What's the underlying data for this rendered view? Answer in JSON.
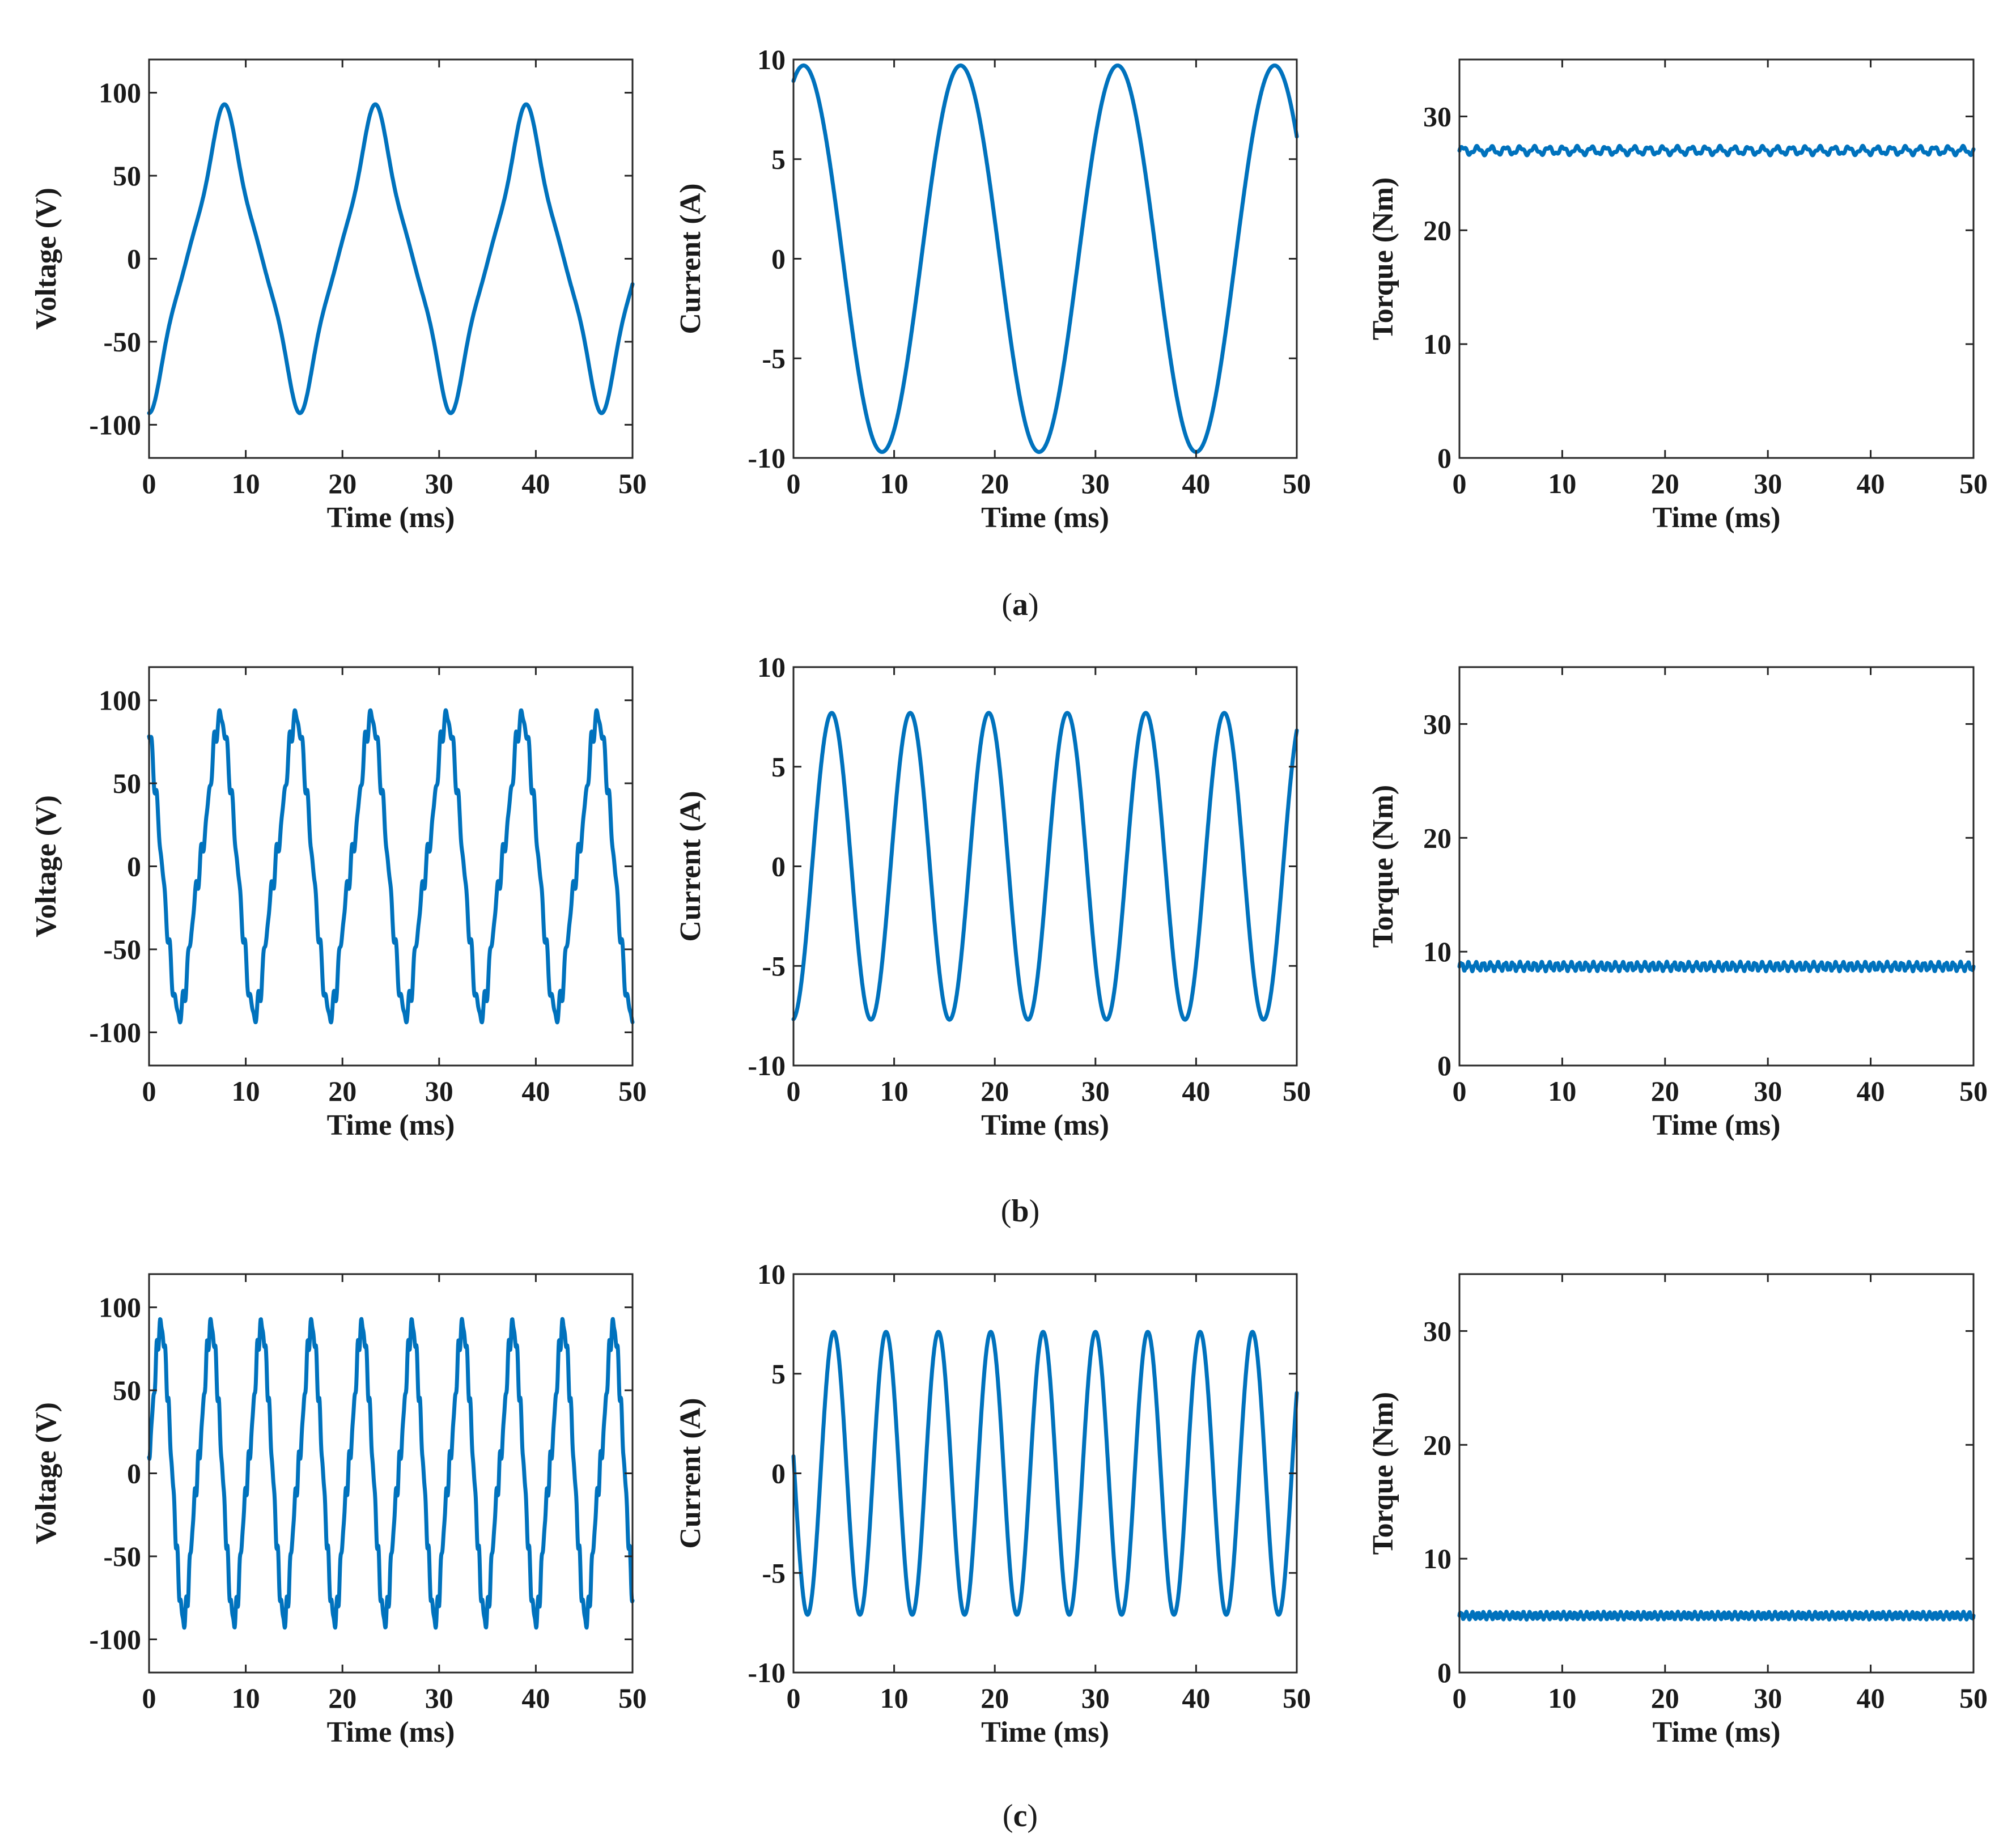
{
  "colors": {
    "series": "#0072BD",
    "axes": "#262626"
  },
  "rows": [
    {
      "caption": {
        "open": "(",
        "letter": "a",
        "close": ")"
      }
    },
    {
      "caption": {
        "open": "(",
        "letter": "b",
        "close": ")"
      }
    },
    {
      "caption": {
        "open": "(",
        "letter": "c",
        "close": ")"
      }
    }
  ],
  "chart_data": [
    {
      "panel": "a-voltage",
      "type": "line",
      "xlabel": "Time (ms)",
      "ylabel": "Voltage (V)",
      "xlim": [
        0,
        50
      ],
      "ylim": [
        -120,
        120
      ],
      "xticks": [
        0,
        10,
        20,
        30,
        40,
        50
      ],
      "yticks": [
        -100,
        -50,
        0,
        50,
        100
      ],
      "series": [
        {
          "period_ms": 15.6,
          "peak_time_ms": 7.8,
          "amplitude": 93,
          "waveform": "flat-topped periodic",
          "x": [
            0,
            50
          ]
        }
      ]
    },
    {
      "panel": "a-current",
      "type": "line",
      "xlabel": "Time (ms)",
      "ylabel": "Current (A)",
      "xlim": [
        0,
        50
      ],
      "ylim": [
        -10,
        10
      ],
      "xticks": [
        0,
        10,
        20,
        30,
        40,
        50
      ],
      "yticks": [
        -10,
        -5,
        0,
        5,
        10
      ],
      "series": [
        {
          "period_ms": 15.6,
          "peak_time_ms": 1,
          "amplitude": 9.7,
          "waveform": "sinusoidal",
          "x": [
            0,
            50
          ]
        }
      ]
    },
    {
      "panel": "a-torque",
      "type": "line",
      "xlabel": "Time (ms)",
      "ylabel": "Torque (Nm)",
      "xlim": [
        0,
        50
      ],
      "ylim": [
        0,
        35
      ],
      "xticks": [
        0,
        10,
        20,
        30,
        40,
        50
      ],
      "yticks": [
        0,
        10,
        20,
        30
      ],
      "series": [
        {
          "mean": 27,
          "ripple": 0.3,
          "ripple_cycles": 36,
          "x": [
            0,
            50
          ]
        }
      ]
    },
    {
      "panel": "b-voltage",
      "type": "line",
      "xlabel": "Time (ms)",
      "ylabel": "Voltage (V)",
      "xlim": [
        0,
        50
      ],
      "ylim": [
        -120,
        120
      ],
      "xticks": [
        0,
        10,
        20,
        30,
        40,
        50
      ],
      "yticks": [
        -100,
        -50,
        0,
        50,
        100
      ],
      "series": [
        {
          "period_ms": 7.8,
          "peak_time_ms": 7.2,
          "amplitude": 93,
          "waveform": "periodic with slot-harmonic steps",
          "x": [
            0,
            50
          ]
        }
      ]
    },
    {
      "panel": "b-current",
      "type": "line",
      "xlabel": "Time (ms)",
      "ylabel": "Current (A)",
      "xlim": [
        0,
        50
      ],
      "ylim": [
        -10,
        10
      ],
      "xticks": [
        0,
        10,
        20,
        30,
        40,
        50
      ],
      "yticks": [
        -10,
        -5,
        0,
        5,
        10
      ],
      "series": [
        {
          "period_ms": 7.8,
          "peak_time_ms": 3.8,
          "amplitude": 7.7,
          "waveform": "sinusoidal",
          "x": [
            0,
            50
          ]
        }
      ]
    },
    {
      "panel": "b-torque",
      "type": "line",
      "xlabel": "Time (ms)",
      "ylabel": "Torque (Nm)",
      "xlim": [
        0,
        50
      ],
      "ylim": [
        0,
        35
      ],
      "xticks": [
        0,
        10,
        20,
        30,
        40,
        50
      ],
      "yticks": [
        0,
        10,
        20,
        30
      ],
      "series": [
        {
          "mean": 8.7,
          "ripple": 0.3,
          "ripple_cycles": 70,
          "x": [
            0,
            50
          ]
        }
      ]
    },
    {
      "panel": "c-voltage",
      "type": "line",
      "xlabel": "Time (ms)",
      "ylabel": "Voltage (V)",
      "xlim": [
        0,
        50
      ],
      "ylim": [
        -120,
        120
      ],
      "xticks": [
        0,
        10,
        20,
        30,
        40,
        50
      ],
      "yticks": [
        -100,
        -50,
        0,
        50,
        100
      ],
      "series": [
        {
          "period_ms": 5.2,
          "peak_time_ms": 1.1,
          "amplitude": 92,
          "waveform": "periodic with slot-harmonic steps",
          "x": [
            0,
            50
          ]
        }
      ]
    },
    {
      "panel": "c-current",
      "type": "line",
      "xlabel": "Time (ms)",
      "ylabel": "Current (A)",
      "xlim": [
        0,
        50
      ],
      "ylim": [
        -10,
        10
      ],
      "xticks": [
        0,
        10,
        20,
        30,
        40,
        50
      ],
      "yticks": [
        -10,
        -5,
        0,
        5,
        10
      ],
      "series": [
        {
          "period_ms": 5.2,
          "peak_time_ms": 4.0,
          "amplitude": 7.1,
          "waveform": "sinusoidal",
          "x": [
            0,
            50
          ]
        }
      ]
    },
    {
      "panel": "c-torque",
      "type": "line",
      "xlabel": "Time (ms)",
      "ylabel": "Torque (Nm)",
      "xlim": [
        0,
        50
      ],
      "ylim": [
        0,
        35
      ],
      "xticks": [
        0,
        10,
        20,
        30,
        40,
        50
      ],
      "yticks": [
        0,
        10,
        20,
        30
      ],
      "series": [
        {
          "mean": 5.0,
          "ripple": 0.25,
          "ripple_cycles": 90,
          "x": [
            0,
            50
          ]
        }
      ]
    }
  ]
}
